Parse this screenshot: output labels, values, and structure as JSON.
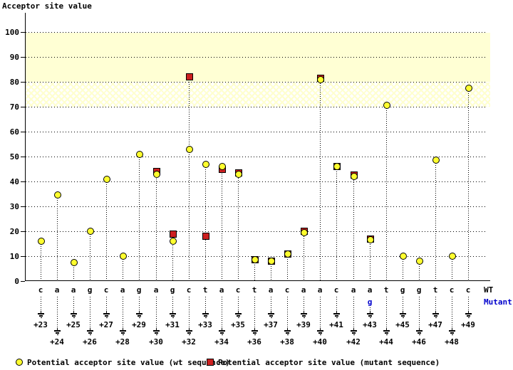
{
  "colors": {
    "wt_point_fill": "#ffff2e",
    "mutant_point_fill": "#cc2020",
    "band_solid_fill": "#ffffd4",
    "mutant_text_blue": "#0000cc",
    "axis_black": "#000000"
  },
  "legend": {
    "wt": "Potential acceptor site value (wt sequence)",
    "mutant": "Potential acceptor site value (mutant sequence)"
  },
  "axis": {
    "wt_label": "WT",
    "mutant_label": "Mutant"
  },
  "chart_data": {
    "type": "scatter",
    "title": "Acceptor site value",
    "ylabel": "Acceptor site value",
    "ylim": [
      0,
      100
    ],
    "yticks": [
      0,
      10,
      20,
      30,
      40,
      50,
      60,
      70,
      80,
      90,
      100
    ],
    "grid": "dotted horizontal",
    "highlight_bands": [
      {
        "from": 80,
        "to": 100,
        "style": "solid-yellow"
      },
      {
        "from": 70,
        "to": 80,
        "style": "crosshatch-yellow"
      }
    ],
    "x_positions": [
      "+23",
      "+24",
      "+25",
      "+26",
      "+27",
      "+28",
      "+29",
      "+30",
      "+31",
      "+32",
      "+33",
      "+34",
      "+35",
      "+36",
      "+37",
      "+38",
      "+39",
      "+40",
      "+41",
      "+42",
      "+43",
      "+44",
      "+45",
      "+46",
      "+47",
      "+48",
      "+49"
    ],
    "wt_sequence": [
      "c",
      "a",
      "a",
      "g",
      "c",
      "a",
      "g",
      "a",
      "g",
      "c",
      "t",
      "a",
      "c",
      "t",
      "a",
      "c",
      "a",
      "a",
      "c",
      "a",
      "a",
      "t",
      "g",
      "g",
      "t",
      "c",
      "c"
    ],
    "mutant_base": {
      "position": "+43",
      "base": "g"
    },
    "series": [
      {
        "name": "wt",
        "marker": "yellow-circle",
        "values": [
          16,
          34.5,
          7.5,
          20,
          41,
          10,
          51,
          43,
          16,
          53,
          47,
          46,
          43,
          8.5,
          8,
          11,
          19.5,
          81,
          46,
          42,
          16.5,
          70.5,
          10,
          8,
          48.5,
          10,
          77.5
        ]
      },
      {
        "name": "mutant",
        "marker": "red-square",
        "values": [
          null,
          null,
          null,
          null,
          null,
          null,
          null,
          44,
          19,
          82,
          18,
          45,
          43.5,
          8.5,
          8,
          11,
          20,
          81.5,
          46,
          42.5,
          17,
          null,
          null,
          null,
          null,
          null,
          null
        ]
      }
    ]
  }
}
